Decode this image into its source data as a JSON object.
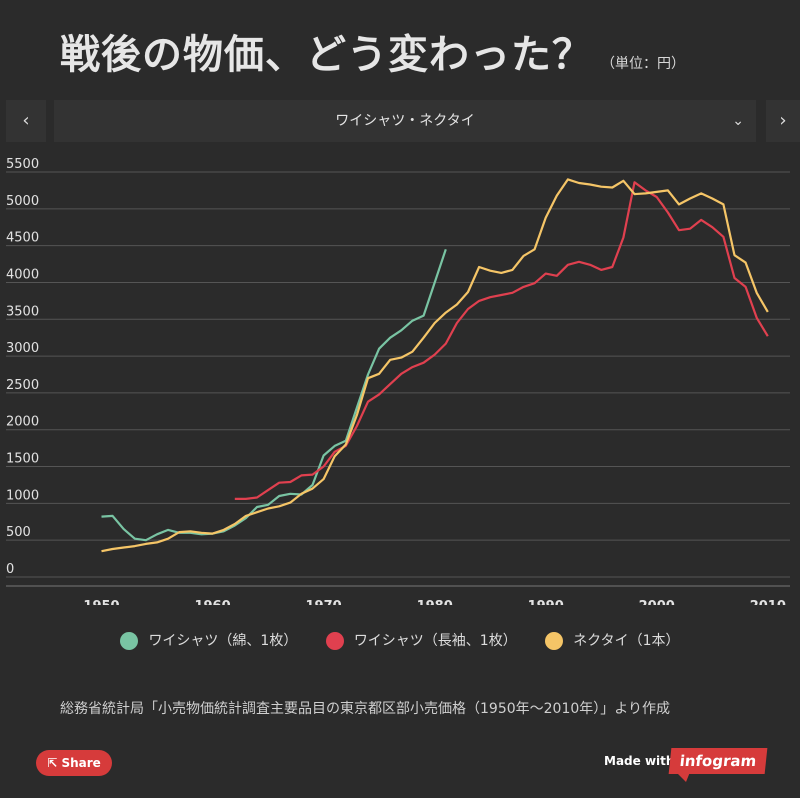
{
  "header": {
    "title": "戦後の物価、どう変わった？",
    "unit": "（単位：円）"
  },
  "selector": {
    "prev_label": "‹",
    "next_label": "›",
    "current": "ワイシャツ・ネクタイ",
    "chevron": "⌄"
  },
  "legend": [
    {
      "label": "ワイシャツ（綿、1枚）",
      "color": "#79c4a3"
    },
    {
      "label": "ワイシャツ（長袖、1枚）",
      "color": "#e0404f"
    },
    {
      "label": "ネクタイ（1本）",
      "color": "#f5c567"
    }
  ],
  "source": "総務省統計局「小売物価統計調査主要品目の東京都区部小売価格（1950年〜2010年）」より作成",
  "footer": {
    "share_label": "Share",
    "made_with": "Made with",
    "brand": "infogram"
  },
  "chart_data": {
    "type": "line",
    "title": "戦後の物価、どう変わった？",
    "unit": "円",
    "xlim": [
      1945,
      2012
    ],
    "ylim": [
      0,
      5500
    ],
    "xticks": [
      1950,
      1960,
      1970,
      1980,
      1990,
      2000,
      2010
    ],
    "yticks": [
      0,
      500,
      1000,
      1500,
      2000,
      2500,
      3000,
      3500,
      4000,
      4500,
      5000,
      5500
    ],
    "grid": true,
    "legend_position": "bottom",
    "series": [
      {
        "name": "ワイシャツ（綿、1枚）",
        "color": "#79c4a3",
        "x": [
          1950,
          1951,
          1952,
          1953,
          1954,
          1955,
          1956,
          1957,
          1958,
          1959,
          1960,
          1961,
          1962,
          1963,
          1964,
          1965,
          1966,
          1967,
          1968,
          1969,
          1970,
          1971,
          1972,
          1973,
          1974,
          1975,
          1976,
          1977,
          1978,
          1979,
          1980,
          1981
        ],
        "y": [
          820,
          830,
          650,
          520,
          500,
          580,
          640,
          600,
          600,
          580,
          590,
          620,
          700,
          800,
          950,
          980,
          1100,
          1130,
          1120,
          1250,
          1650,
          1780,
          1850,
          2300,
          2750,
          3100,
          3250,
          3350,
          3480,
          3550,
          4000,
          4450
        ]
      },
      {
        "name": "ワイシャツ（長袖、1枚）",
        "color": "#e0404f",
        "x": [
          1962,
          1963,
          1964,
          1965,
          1966,
          1967,
          1968,
          1969,
          1970,
          1971,
          1972,
          1973,
          1974,
          1975,
          1976,
          1977,
          1978,
          1979,
          1980,
          1981,
          1982,
          1983,
          1984,
          1985,
          1986,
          1987,
          1988,
          1989,
          1990,
          1991,
          1992,
          1993,
          1994,
          1995,
          1996,
          1997,
          1998,
          1999,
          2000,
          2001,
          2002,
          2003,
          2004,
          2005,
          2006,
          2007,
          2008,
          2009,
          2010
        ],
        "y": [
          1060,
          1060,
          1080,
          1180,
          1280,
          1290,
          1380,
          1390,
          1500,
          1700,
          1780,
          2050,
          2380,
          2480,
          2620,
          2760,
          2850,
          2910,
          3020,
          3170,
          3450,
          3640,
          3750,
          3800,
          3830,
          3860,
          3940,
          3990,
          4120,
          4090,
          4240,
          4280,
          4240,
          4170,
          4210,
          4610,
          5360,
          5250,
          5160,
          4950,
          4710,
          4730,
          4850,
          4750,
          4620,
          4060,
          3940,
          3520,
          3270
        ]
      },
      {
        "name": "ネクタイ（1本）",
        "color": "#f5c567",
        "x": [
          1950,
          1951,
          1952,
          1953,
          1954,
          1955,
          1956,
          1957,
          1958,
          1959,
          1960,
          1961,
          1962,
          1963,
          1964,
          1965,
          1966,
          1967,
          1968,
          1969,
          1970,
          1971,
          1972,
          1973,
          1974,
          1975,
          1976,
          1977,
          1978,
          1979,
          1980,
          1981,
          1982,
          1983,
          1984,
          1985,
          1986,
          1987,
          1988,
          1989,
          1990,
          1991,
          1992,
          1993,
          1994,
          1995,
          1996,
          1997,
          1998,
          1999,
          2000,
          2001,
          2002,
          2003,
          2004,
          2005,
          2006,
          2007,
          2008,
          2009,
          2010
        ],
        "y": [
          350,
          380,
          400,
          420,
          450,
          470,
          520,
          610,
          620,
          600,
          590,
          640,
          720,
          830,
          880,
          930,
          960,
          1010,
          1130,
          1200,
          1330,
          1640,
          1800,
          2200,
          2700,
          2760,
          2950,
          2980,
          3060,
          3250,
          3450,
          3590,
          3700,
          3870,
          4210,
          4160,
          4130,
          4170,
          4360,
          4450,
          4880,
          5180,
          5400,
          5350,
          5330,
          5300,
          5290,
          5380,
          5200,
          5210,
          5230,
          5250,
          5060,
          5140,
          5210,
          5140,
          5060,
          4370,
          4270,
          3860,
          3600
        ]
      }
    ]
  }
}
